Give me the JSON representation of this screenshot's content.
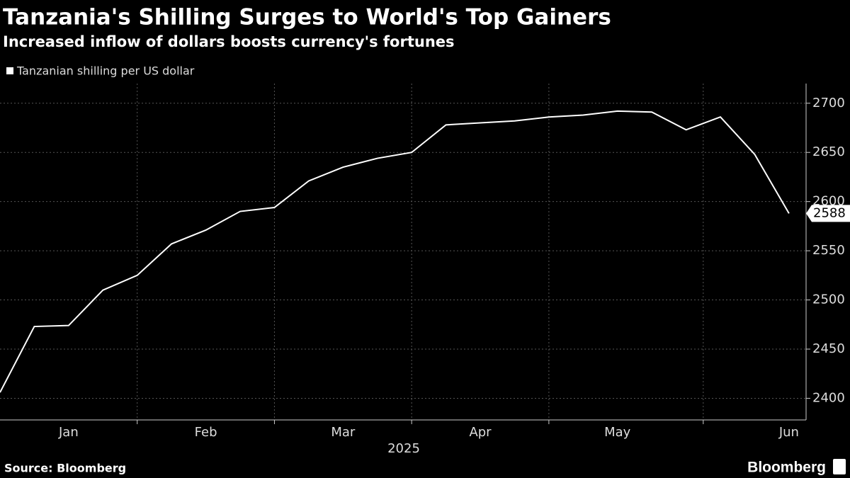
{
  "chart_data": {
    "type": "line",
    "title": "Tanzania's Shilling Surges to World's Top Gainers",
    "subtitle": "Increased inflow of dollars boosts currency's fortunes",
    "categories": [
      null,
      null,
      "Jan",
      null,
      null,
      null,
      "Feb",
      null,
      null,
      null,
      "Mar",
      null,
      null,
      null,
      "Apr",
      null,
      null,
      null,
      "May",
      null,
      null,
      null,
      null,
      "Jun"
    ],
    "x_label": "2025",
    "series": [
      {
        "name": "Tanzanian shilling per US dollar",
        "color": "#ffffff",
        "values": [
          2406,
          2473,
          2474,
          2510,
          2525,
          2557,
          2571,
          2590,
          2594,
          2621,
          2635,
          2644,
          2650,
          2678,
          2680,
          2682,
          2686,
          2688,
          2692,
          2691,
          2673,
          2686,
          2648,
          2588
        ]
      }
    ],
    "ylim": [
      2378,
      2720
    ],
    "yticks": [
      2400,
      2450,
      2500,
      2550,
      2600,
      2650,
      2700
    ],
    "grid": true,
    "source": "Source: Bloomberg",
    "logo": "Bloomberg"
  }
}
